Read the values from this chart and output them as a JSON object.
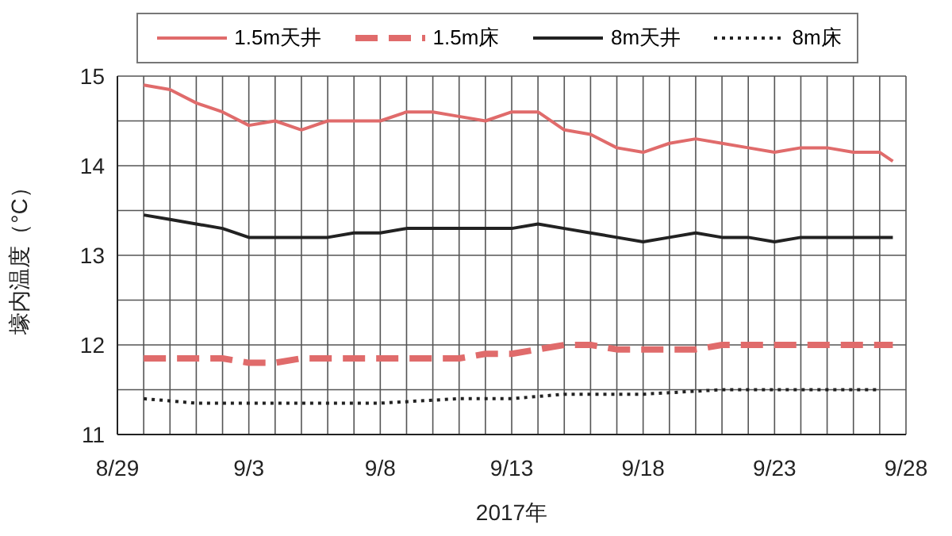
{
  "chart_data": {
    "type": "line",
    "xlabel": "2017年",
    "ylabel": "壕内温度（°C）",
    "legend": "top",
    "grid": true,
    "xlim": [
      "2017-08-29",
      "2017-09-28"
    ],
    "xticks": [
      {
        "value": "2017-08-29",
        "label": "8/29"
      },
      {
        "value": "2017-08-30",
        "label": null
      },
      {
        "value": "2017-08-31",
        "label": null
      },
      {
        "value": "2017-09-01",
        "label": null
      },
      {
        "value": "2017-09-02",
        "label": null
      },
      {
        "value": "2017-09-03",
        "label": "9/3"
      },
      {
        "value": "2017-09-04",
        "label": null
      },
      {
        "value": "2017-09-05",
        "label": null
      },
      {
        "value": "2017-09-06",
        "label": null
      },
      {
        "value": "2017-09-07",
        "label": null
      },
      {
        "value": "2017-09-08",
        "label": "9/8"
      },
      {
        "value": "2017-09-09",
        "label": null
      },
      {
        "value": "2017-09-10",
        "label": null
      },
      {
        "value": "2017-09-11",
        "label": null
      },
      {
        "value": "2017-09-12",
        "label": null
      },
      {
        "value": "2017-09-13",
        "label": "9/13"
      },
      {
        "value": "2017-09-14",
        "label": null
      },
      {
        "value": "2017-09-15",
        "label": null
      },
      {
        "value": "2017-09-16",
        "label": null
      },
      {
        "value": "2017-09-17",
        "label": null
      },
      {
        "value": "2017-09-18",
        "label": "9/18"
      },
      {
        "value": "2017-09-19",
        "label": null
      },
      {
        "value": "2017-09-20",
        "label": null
      },
      {
        "value": "2017-09-21",
        "label": null
      },
      {
        "value": "2017-09-22",
        "label": null
      },
      {
        "value": "2017-09-23",
        "label": "9/23"
      },
      {
        "value": "2017-09-24",
        "label": null
      },
      {
        "value": "2017-09-25",
        "label": null
      },
      {
        "value": "2017-09-26",
        "label": null
      },
      {
        "value": "2017-09-27",
        "label": null
      },
      {
        "value": "2017-09-28",
        "label": "9/28"
      }
    ],
    "ylim": [
      11,
      15
    ],
    "yticks": [
      11,
      {
        "value": 11.5,
        "label": null
      },
      12,
      {
        "value": 12.5,
        "label": null
      },
      13,
      {
        "value": 13.5,
        "label": null
      },
      14,
      {
        "value": 14.5,
        "label": null
      },
      15
    ],
    "x": [
      "2017-08-30",
      "2017-08-31",
      "2017-09-01",
      "2017-09-02",
      "2017-09-03",
      "2017-09-04",
      "2017-09-05",
      "2017-09-06",
      "2017-09-07",
      "2017-09-08",
      "2017-09-09",
      "2017-09-10",
      "2017-09-11",
      "2017-09-12",
      "2017-09-13",
      "2017-09-14",
      "2017-09-15",
      "2017-09-16",
      "2017-09-17",
      "2017-09-18",
      "2017-09-19",
      "2017-09-20",
      "2017-09-21",
      "2017-09-22",
      "2017-09-23",
      "2017-09-24",
      "2017-09-25",
      "2017-09-26",
      "2017-09-27",
      "2017-09-27T12:00"
    ],
    "series": [
      {
        "name": "1.5m天井",
        "color": "#e06b6b",
        "line_style": "solid",
        "values": [
          14.9,
          14.85,
          14.7,
          14.6,
          14.45,
          14.5,
          14.4,
          14.5,
          14.5,
          14.5,
          14.6,
          14.6,
          14.55,
          14.5,
          14.6,
          14.6,
          14.4,
          14.35,
          14.2,
          14.15,
          14.25,
          14.3,
          14.25,
          14.2,
          14.15,
          14.2,
          14.2,
          14.15,
          14.15,
          14.05
        ]
      },
      {
        "name": "1.5m床",
        "color": "#e06b6b",
        "line_style": "dashed",
        "values": [
          11.85,
          11.85,
          11.85,
          11.85,
          11.8,
          11.8,
          11.85,
          11.85,
          11.85,
          11.85,
          11.85,
          11.85,
          11.85,
          11.9,
          11.9,
          11.95,
          12,
          12,
          11.95,
          11.95,
          11.95,
          11.95,
          12,
          12,
          12,
          12,
          12,
          12,
          12,
          12
        ]
      },
      {
        "name": "8m天井",
        "color": "#222222",
        "line_style": "solid",
        "values": [
          13.45,
          13.4,
          13.35,
          13.3,
          13.2,
          13.2,
          13.2,
          13.2,
          13.25,
          13.25,
          13.3,
          13.3,
          13.3,
          13.3,
          13.3,
          13.35,
          13.3,
          13.25,
          13.2,
          13.15,
          13.2,
          13.25,
          13.2,
          13.2,
          13.15,
          13.2,
          13.2,
          13.2,
          13.2,
          13.2
        ]
      },
      {
        "name": "8m床",
        "color": "#222222",
        "line_style": "dotted",
        "x": [
          "2017-08-30",
          "2017-09-01",
          "2017-09-03",
          "2017-09-06",
          "2017-09-08",
          "2017-09-11",
          "2017-09-13",
          "2017-09-15",
          "2017-09-18",
          "2017-09-21",
          "2017-09-23",
          "2017-09-25",
          "2017-09-27"
        ],
        "values": [
          11.4,
          11.35,
          11.35,
          11.35,
          11.35,
          11.4,
          11.4,
          11.45,
          11.45,
          11.5,
          11.5,
          11.5,
          11.5
        ]
      }
    ]
  }
}
